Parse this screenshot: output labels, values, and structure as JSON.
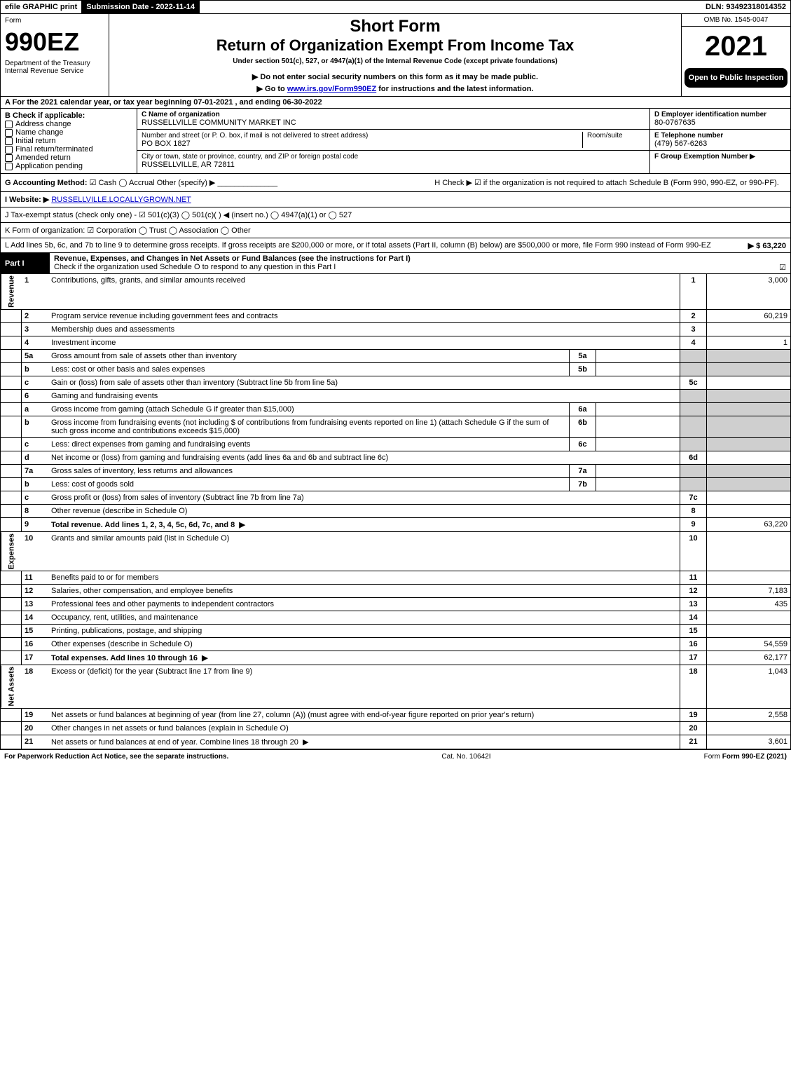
{
  "top_bar": {
    "efile": "efile GRAPHIC print",
    "submission_label": "Submission Date - 2022-11-14",
    "dln": "DLN: 93492318014352"
  },
  "header": {
    "form_label": "Form",
    "form_number": "990EZ",
    "dept1": "Department of the Treasury",
    "dept2": "Internal Revenue Service",
    "title": "Short Form",
    "subtitle": "Return of Organization Exempt From Income Tax",
    "under": "Under section 501(c), 527, or 4947(a)(1) of the Internal Revenue Code (except private foundations)",
    "note1": "▶ Do not enter social security numbers on this form as it may be made public.",
    "note2_pre": "▶ Go to ",
    "note2_link": "www.irs.gov/Form990EZ",
    "note2_post": " for instructions and the latest information.",
    "omb": "OMB No. 1545-0047",
    "year": "2021",
    "open_to": "Open to Public Inspection"
  },
  "line_a": "A  For the 2021 calendar year, or tax year beginning 07-01-2021 , and ending 06-30-2022",
  "section_b": {
    "check_label": "B  Check if applicable:",
    "opts": [
      "Address change",
      "Name change",
      "Initial return",
      "Final return/terminated",
      "Amended return",
      "Application pending"
    ]
  },
  "section_c": {
    "name_label": "C Name of organization",
    "name": "RUSSELLVILLE COMMUNITY MARKET INC",
    "street_label": "Number and street (or P. O. box, if mail is not delivered to street address)",
    "room_label": "Room/suite",
    "street": "PO BOX 1827",
    "city_label": "City or town, state or province, country, and ZIP or foreign postal code",
    "city": "RUSSELLVILLE, AR  72811"
  },
  "section_d": {
    "label": "D Employer identification number",
    "ein": "80-0767635",
    "tel_label": "E Telephone number",
    "tel": "(479) 567-6263",
    "group_label": "F Group Exemption Number  ▶"
  },
  "line_g": {
    "label": "G Accounting Method:",
    "cash": "Cash",
    "accrual": "Accrual",
    "other": "Other (specify) ▶"
  },
  "line_h": "H  Check ▶ ☑ if the organization is not required to attach Schedule B (Form 990, 990-EZ, or 990-PF).",
  "line_i": {
    "label": "I Website: ▶",
    "url": "RUSSELLVILLE.LOCALLYGROWN.NET"
  },
  "line_j": "J Tax-exempt status (check only one) - ☑ 501(c)(3)  ◯ 501(c)(  ) ◀ (insert no.)  ◯ 4947(a)(1) or  ◯ 527",
  "line_k": "K Form of organization:  ☑ Corporation  ◯ Trust  ◯ Association  ◯ Other",
  "line_l": {
    "text": "L Add lines 5b, 6c, and 7b to line 9 to determine gross receipts. If gross receipts are $200,000 or more, or if total assets (Part II, column (B) below) are $500,000 or more, file Form 990 instead of Form 990-EZ",
    "amt_label": "▶ $ 63,220"
  },
  "part1": {
    "title": "Part I",
    "desc": "Revenue, Expenses, and Changes in Net Assets or Fund Balances (see the instructions for Part I)",
    "check_note": "Check if the organization used Schedule O to respond to any question in this Part I"
  },
  "side_labels": {
    "revenue": "Revenue",
    "expenses": "Expenses",
    "net": "Net Assets"
  },
  "rows": [
    {
      "n": "1",
      "txt": "Contributions, gifts, grants, and similar amounts received",
      "rn": "1",
      "amt": "3,000"
    },
    {
      "n": "2",
      "txt": "Program service revenue including government fees and contracts",
      "rn": "2",
      "amt": "60,219"
    },
    {
      "n": "3",
      "txt": "Membership dues and assessments",
      "rn": "3",
      "amt": ""
    },
    {
      "n": "4",
      "txt": "Investment income",
      "rn": "4",
      "amt": "1"
    },
    {
      "n": "5a",
      "txt": "Gross amount from sale of assets other than inventory",
      "sub": "5a",
      "gray": true
    },
    {
      "n": "b",
      "txt": "Less: cost or other basis and sales expenses",
      "sub": "5b",
      "gray": true
    },
    {
      "n": "c",
      "txt": "Gain or (loss) from sale of assets other than inventory (Subtract line 5b from line 5a)",
      "rn": "5c",
      "amt": ""
    },
    {
      "n": "6",
      "txt": "Gaming and fundraising events",
      "header": true
    },
    {
      "n": "a",
      "txt": "Gross income from gaming (attach Schedule G if greater than $15,000)",
      "sub": "6a",
      "gray": true
    },
    {
      "n": "b",
      "txt": "Gross income from fundraising events (not including $                       of contributions from fundraising events reported on line 1) (attach Schedule G if the sum of such gross income and contributions exceeds $15,000)",
      "sub": "6b",
      "gray": true,
      "tall": true
    },
    {
      "n": "c",
      "txt": "Less: direct expenses from gaming and fundraising events",
      "sub": "6c",
      "gray": true
    },
    {
      "n": "d",
      "txt": "Net income or (loss) from gaming and fundraising events (add lines 6a and 6b and subtract line 6c)",
      "rn": "6d",
      "amt": ""
    },
    {
      "n": "7a",
      "txt": "Gross sales of inventory, less returns and allowances",
      "sub": "7a",
      "gray": true
    },
    {
      "n": "b",
      "txt": "Less: cost of goods sold",
      "sub": "7b",
      "gray": true
    },
    {
      "n": "c",
      "txt": "Gross profit or (loss) from sales of inventory (Subtract line 7b from line 7a)",
      "rn": "7c",
      "amt": ""
    },
    {
      "n": "8",
      "txt": "Other revenue (describe in Schedule O)",
      "rn": "8",
      "amt": ""
    },
    {
      "n": "9",
      "txt": "Total revenue. Add lines 1, 2, 3, 4, 5c, 6d, 7c, and 8",
      "rn": "9",
      "amt": "63,220",
      "bold": true,
      "arrow": true
    }
  ],
  "exp_rows": [
    {
      "n": "10",
      "txt": "Grants and similar amounts paid (list in Schedule O)",
      "rn": "10",
      "amt": ""
    },
    {
      "n": "11",
      "txt": "Benefits paid to or for members",
      "rn": "11",
      "amt": ""
    },
    {
      "n": "12",
      "txt": "Salaries, other compensation, and employee benefits",
      "rn": "12",
      "amt": "7,183"
    },
    {
      "n": "13",
      "txt": "Professional fees and other payments to independent contractors",
      "rn": "13",
      "amt": "435"
    },
    {
      "n": "14",
      "txt": "Occupancy, rent, utilities, and maintenance",
      "rn": "14",
      "amt": ""
    },
    {
      "n": "15",
      "txt": "Printing, publications, postage, and shipping",
      "rn": "15",
      "amt": ""
    },
    {
      "n": "16",
      "txt": "Other expenses (describe in Schedule O)",
      "rn": "16",
      "amt": "54,559"
    },
    {
      "n": "17",
      "txt": "Total expenses. Add lines 10 through 16",
      "rn": "17",
      "amt": "62,177",
      "bold": true,
      "arrow": true
    }
  ],
  "net_rows": [
    {
      "n": "18",
      "txt": "Excess or (deficit) for the year (Subtract line 17 from line 9)",
      "rn": "18",
      "amt": "1,043"
    },
    {
      "n": "19",
      "txt": "Net assets or fund balances at beginning of year (from line 27, column (A)) (must agree with end-of-year figure reported on prior year's return)",
      "rn": "19",
      "amt": "2,558",
      "tall": true
    },
    {
      "n": "20",
      "txt": "Other changes in net assets or fund balances (explain in Schedule O)",
      "rn": "20",
      "amt": ""
    },
    {
      "n": "21",
      "txt": "Net assets or fund balances at end of year. Combine lines 18 through 20",
      "rn": "21",
      "amt": "3,601",
      "arrow": true
    }
  ],
  "footer": {
    "left": "For Paperwork Reduction Act Notice, see the separate instructions.",
    "mid": "Cat. No. 10642I",
    "right": "Form 990-EZ (2021)"
  }
}
